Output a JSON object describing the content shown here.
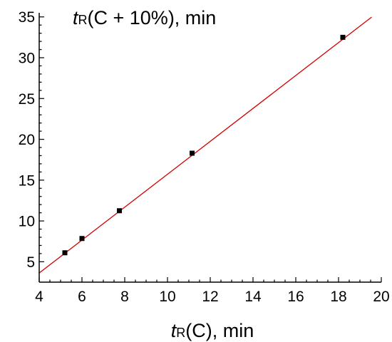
{
  "chart_data": {
    "type": "scatter",
    "title": "",
    "xlabel": {
      "var": "t",
      "sub": "R",
      "rest": "(C), min"
    },
    "ylabel": {
      "var": "t",
      "sub": "R",
      "rest": "(C + 10%), min"
    },
    "xlim": [
      4,
      20
    ],
    "ylim": [
      2.5,
      35.5
    ],
    "x_ticks": [
      4,
      6,
      8,
      10,
      12,
      14,
      16,
      18,
      20
    ],
    "y_ticks": [
      5,
      10,
      15,
      20,
      25,
      30,
      35
    ],
    "grid": false,
    "legend": "none",
    "series": [
      {
        "kind": "points",
        "color": "#000000",
        "x": [
          5.2,
          6.0,
          7.75,
          11.15,
          18.2
        ],
        "y": [
          6.1,
          7.85,
          11.25,
          18.3,
          32.5
        ]
      },
      {
        "kind": "fit-line",
        "color": "#d40000",
        "x": [
          4.0,
          19.55
        ],
        "y": [
          3.62,
          34.98
        ]
      }
    ]
  }
}
